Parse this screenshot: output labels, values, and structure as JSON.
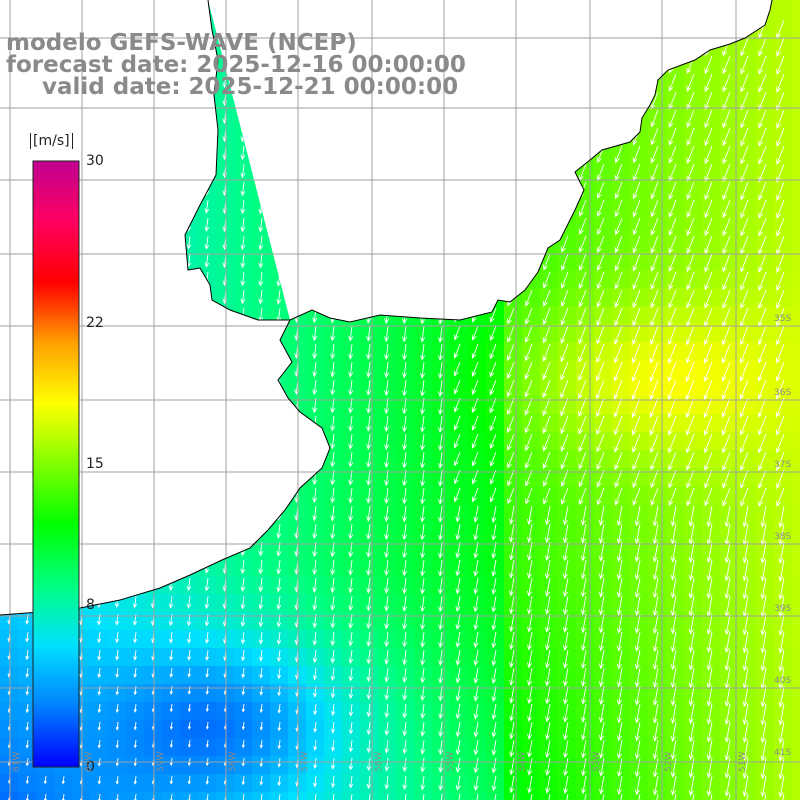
{
  "title": {
    "model": "modelo GEFS-WAVE (NCEP)",
    "forecast": "forecast date: 2025-12-16 00:00:00",
    "valid": "valid date: 2025-12-21 00:00:00"
  },
  "colorbar": {
    "unit": "[m/s]",
    "ticks": [
      {
        "value": 30,
        "label": "30"
      },
      {
        "value": 22,
        "label": "22"
      },
      {
        "value": 15,
        "label": "15"
      },
      {
        "value": 8,
        "label": "8"
      },
      {
        "value": 0,
        "label": "0"
      }
    ],
    "range": [
      0,
      30
    ],
    "colors": [
      "#0000ff",
      "#0080ff",
      "#00e0ff",
      "#00ff80",
      "#00ff00",
      "#80ff00",
      "#ffff00",
      "#ffa000",
      "#ff0000",
      "#ff0060",
      "#c00090"
    ]
  },
  "map": {
    "grid_color": "#a0a0a0",
    "coast_color": "#000000",
    "land_color": "#ffffff",
    "arrow_color": "#ffffff",
    "lat_labels": [
      "35S",
      "36S",
      "37S",
      "38S",
      "39S",
      "40S",
      "41S"
    ],
    "lon_labels": [
      "61W",
      "60W",
      "59W",
      "58W",
      "57W",
      "56W",
      "55W",
      "54W",
      "53W",
      "52W",
      "51W"
    ]
  }
}
